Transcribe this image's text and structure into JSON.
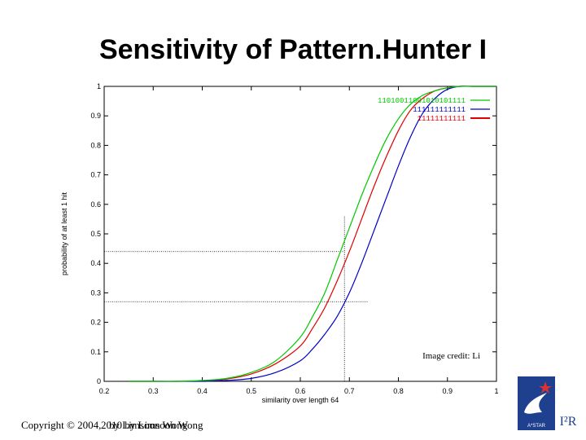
{
  "slide": {
    "title": "Sensitivity of Pattern.Hunter I",
    "copyright_prefix": "Copyright © 2004,",
    "copyright_overlap_a": "by Limsoon Wong",
    "copyright_overlap_b": "2010 by Limsoon Wong",
    "logo_text": "A*STAR",
    "logo_brand": "I²R"
  },
  "colors": {
    "green": "#00c800",
    "blue": "#0000c8",
    "red": "#e00000",
    "axis": "#000000"
  },
  "chart_data": {
    "type": "line",
    "title": "",
    "xlabel": "similarity over length 64",
    "ylabel": "probability of at least 1 hit",
    "xlim": [
      0.2,
      1.0
    ],
    "ylim": [
      0,
      1
    ],
    "xticks": [
      0.2,
      0.3,
      0.4,
      0.5,
      0.6,
      0.7,
      0.8,
      0.9,
      1
    ],
    "xtick_labels": [
      "0.2",
      "0.3",
      "0.4",
      "0.5",
      "0.6",
      "0.7",
      "0.8",
      "0.9",
      "1"
    ],
    "yticks": [
      0,
      0.1,
      0.2,
      0.3,
      0.4,
      0.5,
      0.6,
      0.7,
      0.8,
      0.9,
      1
    ],
    "ytick_labels": [
      "0",
      "0.1",
      "0.2",
      "0.3",
      "0.4",
      "0.5",
      "0.6",
      "0.7",
      "0.8",
      "0.9",
      "1"
    ],
    "grid": false,
    "legend_position": "top-right",
    "annotation": "Image credit: Li",
    "reference_lines": {
      "x": 0.69,
      "y_upper": 0.44,
      "y_lower": 0.27
    },
    "series": [
      {
        "name": "11010011001010101111",
        "color": "green",
        "x": [
          0.25,
          0.3,
          0.35,
          0.4,
          0.45,
          0.5,
          0.55,
          0.6,
          0.625,
          0.65,
          0.675,
          0.7,
          0.725,
          0.75,
          0.775,
          0.8,
          0.825,
          0.85,
          0.875,
          0.9,
          0.925,
          0.95,
          1.0
        ],
        "y": [
          0.0,
          0.0,
          0.0,
          0.003,
          0.01,
          0.03,
          0.07,
          0.15,
          0.22,
          0.3,
          0.41,
          0.52,
          0.63,
          0.73,
          0.82,
          0.89,
          0.94,
          0.97,
          0.985,
          0.995,
          1.0,
          1.0,
          1.0
        ]
      },
      {
        "name": "111111111111",
        "color": "blue",
        "x": [
          0.25,
          0.3,
          0.35,
          0.4,
          0.45,
          0.5,
          0.55,
          0.6,
          0.625,
          0.65,
          0.675,
          0.7,
          0.725,
          0.75,
          0.775,
          0.8,
          0.825,
          0.85,
          0.875,
          0.9,
          0.925,
          0.95,
          1.0
        ],
        "y": [
          0.0,
          0.0,
          0.0,
          0.0,
          0.003,
          0.01,
          0.03,
          0.07,
          0.11,
          0.16,
          0.22,
          0.3,
          0.4,
          0.51,
          0.62,
          0.73,
          0.83,
          0.91,
          0.96,
          0.99,
          1.0,
          1.0,
          1.0
        ]
      },
      {
        "name": "11111111111",
        "color": "red",
        "x": [
          0.25,
          0.3,
          0.35,
          0.4,
          0.45,
          0.5,
          0.55,
          0.6,
          0.625,
          0.65,
          0.675,
          0.7,
          0.725,
          0.75,
          0.775,
          0.8,
          0.825,
          0.85,
          0.875,
          0.9,
          0.925,
          0.95,
          1.0
        ],
        "y": [
          0.0,
          0.0,
          0.0,
          0.002,
          0.008,
          0.025,
          0.06,
          0.12,
          0.18,
          0.25,
          0.34,
          0.44,
          0.55,
          0.66,
          0.76,
          0.85,
          0.92,
          0.96,
          0.985,
          0.995,
          1.0,
          1.0,
          1.0
        ]
      }
    ]
  }
}
